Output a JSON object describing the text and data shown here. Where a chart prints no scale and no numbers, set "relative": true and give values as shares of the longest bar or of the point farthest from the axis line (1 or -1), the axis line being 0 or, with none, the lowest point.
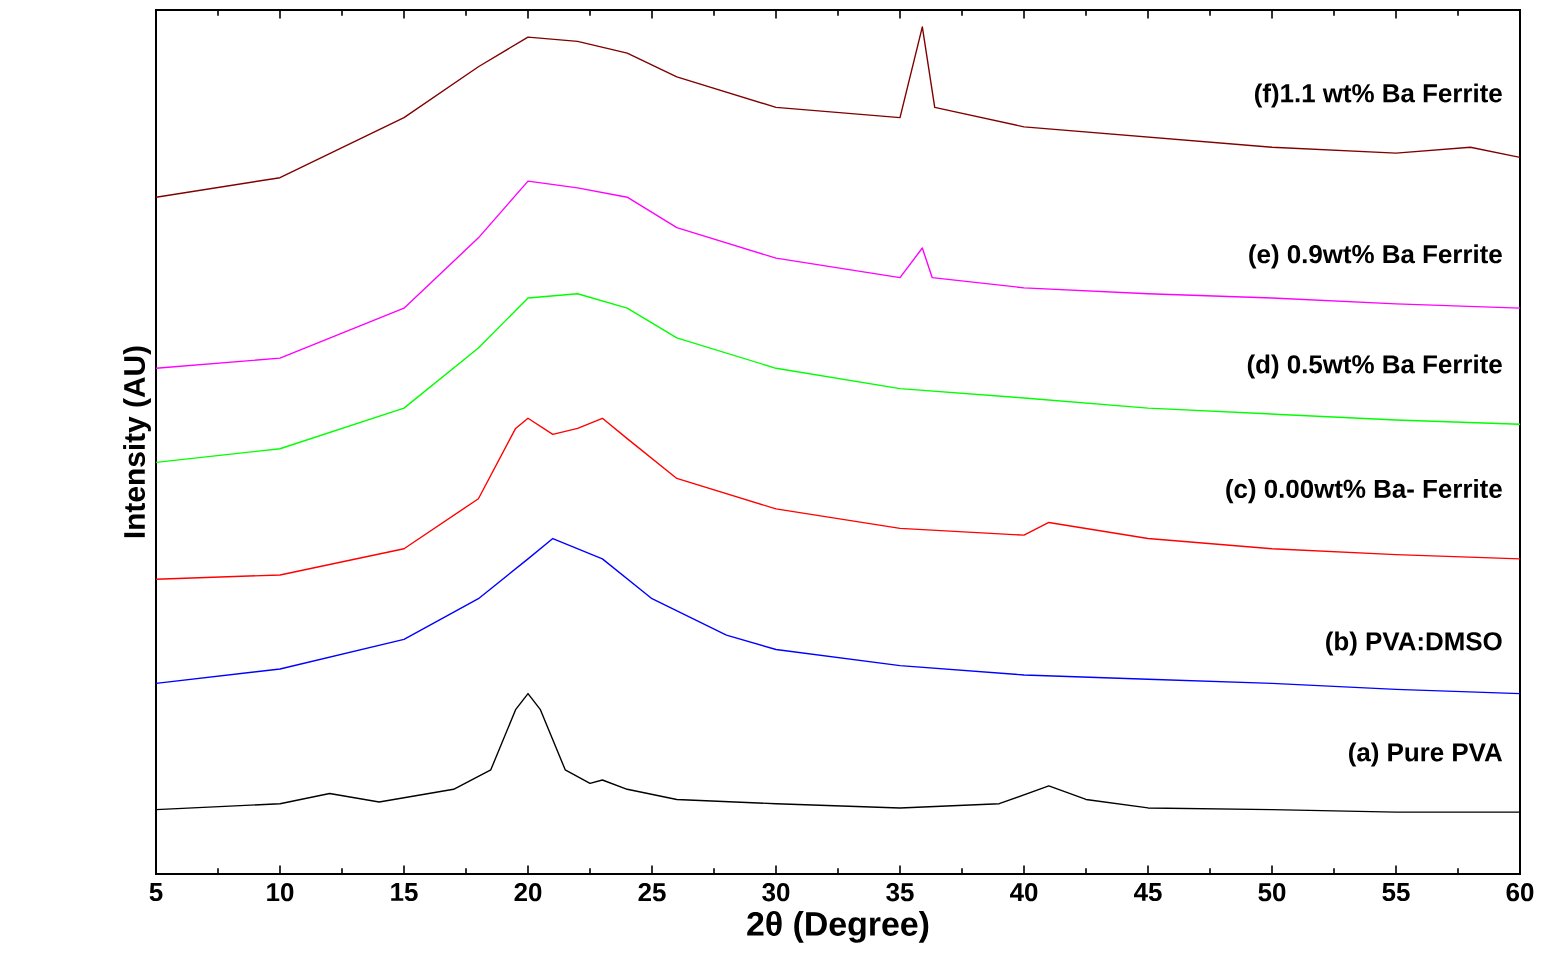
{
  "chart_data": {
    "type": "line",
    "xlabel": "2θ (Degree)",
    "ylabel": "Intensity (AU)",
    "relative": true,
    "xlim": [
      5,
      60
    ],
    "xticks": [
      5,
      10,
      15,
      20,
      25,
      30,
      35,
      40,
      45,
      50,
      55,
      60
    ],
    "grid": false,
    "marker": "none",
    "line_style": "solid",
    "series": [
      {
        "name": "(a) Pure PVA",
        "color": "#000000",
        "x": [
          5,
          10,
          12,
          14,
          17,
          18.5,
          19.5,
          20,
          20.5,
          21.5,
          22.5,
          23,
          24,
          26,
          30,
          35,
          39,
          41,
          42.5,
          45,
          50,
          55,
          60
        ],
        "values": [
          0.076,
          0.083,
          0.095,
          0.085,
          0.1,
          0.123,
          0.194,
          0.213,
          0.194,
          0.123,
          0.107,
          0.111,
          0.1,
          0.088,
          0.083,
          0.078,
          0.083,
          0.104,
          0.088,
          0.078,
          0.076,
          0.073,
          0.073
        ]
      },
      {
        "name": "(b) PVA:DMSO",
        "color": "#0000ff",
        "x": [
          5,
          10,
          15,
          18,
          20,
          21,
          23,
          25,
          28,
          30,
          35,
          40,
          45,
          50,
          55,
          60
        ],
        "values": [
          0.225,
          0.242,
          0.277,
          0.325,
          0.372,
          0.396,
          0.372,
          0.325,
          0.282,
          0.265,
          0.246,
          0.235,
          0.23,
          0.225,
          0.218,
          0.213
        ]
      },
      {
        "name": "(c) 0.00wt% Ba- Ferrite",
        "color": "#ff0000",
        "x": [
          5,
          10,
          15,
          18,
          19.5,
          20,
          21,
          22,
          23,
          24,
          26,
          30,
          35,
          40,
          41,
          45,
          50,
          55,
          60
        ],
        "values": [
          0.348,
          0.353,
          0.384,
          0.443,
          0.526,
          0.538,
          0.519,
          0.526,
          0.538,
          0.514,
          0.467,
          0.431,
          0.408,
          0.4,
          0.415,
          0.396,
          0.384,
          0.377,
          0.372
        ]
      },
      {
        "name": "(d) 0.5wt% Ba Ferrite",
        "color": "#00ff00",
        "x": [
          5,
          10,
          15,
          18,
          20,
          22,
          24,
          26,
          30,
          35,
          40,
          45,
          50,
          55,
          60
        ],
        "values": [
          0.486,
          0.502,
          0.55,
          0.621,
          0.68,
          0.685,
          0.668,
          0.633,
          0.597,
          0.573,
          0.562,
          0.55,
          0.543,
          0.536,
          0.531
        ]
      },
      {
        "name": "(e) 0.9wt% Ba Ferrite",
        "color": "#ff00ff",
        "x": [
          5,
          10,
          15,
          18,
          20,
          22,
          24,
          26,
          30,
          35,
          35.9,
          36.3,
          40,
          45,
          50,
          55,
          60
        ],
        "values": [
          0.597,
          0.609,
          0.668,
          0.751,
          0.818,
          0.81,
          0.799,
          0.763,
          0.727,
          0.704,
          0.739,
          0.704,
          0.692,
          0.685,
          0.68,
          0.673,
          0.668
        ]
      },
      {
        "name": "(f)1.1 wt% Ba Ferrite",
        "color": "#800000",
        "x": [
          5,
          10,
          15,
          18,
          20,
          22,
          24,
          26,
          30,
          35,
          35.9,
          36.4,
          40,
          45,
          50,
          55,
          58,
          60
        ],
        "values": [
          0.799,
          0.822,
          0.893,
          0.953,
          0.988,
          0.983,
          0.969,
          0.941,
          0.905,
          0.893,
          1.0,
          0.905,
          0.882,
          0.87,
          0.858,
          0.851,
          0.858,
          0.846
        ]
      }
    ]
  }
}
